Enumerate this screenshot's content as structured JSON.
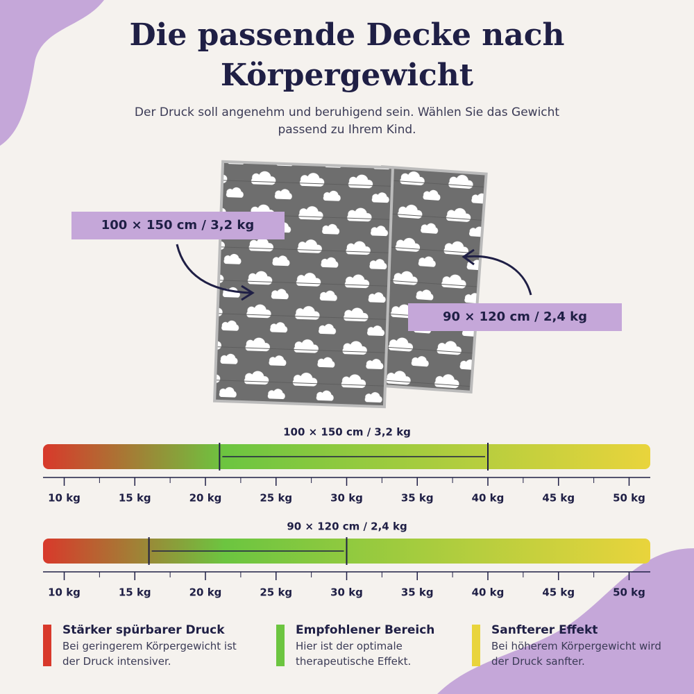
{
  "header": {
    "title": "Die passende Decke nach Körpergewicht",
    "subtitle": "Der Druck soll angenehm und beruhigend sein. Wählen Sie das Gewicht passend zu Ihrem Kind."
  },
  "product": {
    "labels": [
      "100 × 150 cm / 3,2 kg",
      "90 × 120 cm / 2,4 kg"
    ]
  },
  "scales": [
    {
      "title": "100 × 150 cm / 3,2 kg",
      "xlim": [
        8.5,
        51.5
      ],
      "range": [
        21,
        40
      ],
      "xticks": [
        {
          "value": 10,
          "label": "10 kg"
        },
        {
          "value": 15,
          "label": "15 kg"
        },
        {
          "value": 20,
          "label": "20 kg"
        },
        {
          "value": 25,
          "label": "25 kg"
        },
        {
          "value": 30,
          "label": "30 kg"
        },
        {
          "value": 35,
          "label": "35 kg"
        },
        {
          "value": 40,
          "label": "40 kg"
        },
        {
          "value": 45,
          "label": "45 kg"
        },
        {
          "value": 50,
          "label": "50 kg"
        }
      ]
    },
    {
      "title": "90 × 120 cm / 2,4 kg",
      "xlim": [
        8.5,
        51.5
      ],
      "range": [
        16,
        30
      ],
      "xticks": [
        {
          "value": 10,
          "label": "10 kg"
        },
        {
          "value": 15,
          "label": "15 kg"
        },
        {
          "value": 20,
          "label": "20 kg"
        },
        {
          "value": 25,
          "label": "25 kg"
        },
        {
          "value": 30,
          "label": "30 kg"
        },
        {
          "value": 35,
          "label": "35 kg"
        },
        {
          "value": 40,
          "label": "40 kg"
        },
        {
          "value": 45,
          "label": "45 kg"
        },
        {
          "value": 50,
          "label": "50 kg"
        }
      ]
    }
  ],
  "legend": [
    {
      "title": "Stärker spürbarer Druck",
      "text": "Bei geringerem Körpergewicht ist der Druck intensiver.",
      "color": "#d8392b"
    },
    {
      "title": "Empfohlener Bereich",
      "text": "Hier ist der optimale therapeutische Effekt.",
      "color": "#6cc540"
    },
    {
      "title": "Sanfterer Effekt",
      "text": "Bei höherem Körpergewicht wird der Druck sanfter.",
      "color": "#e9d43c"
    }
  ]
}
